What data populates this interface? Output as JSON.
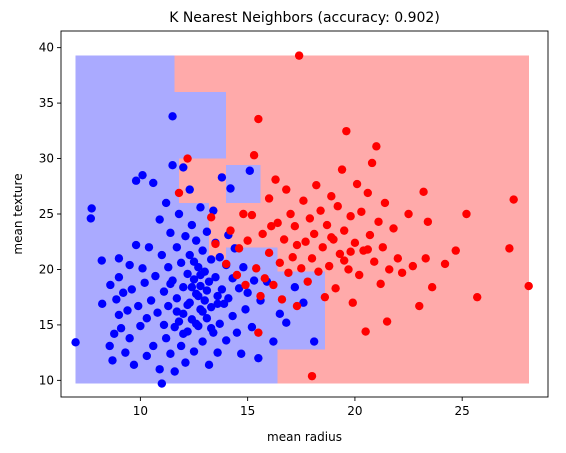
{
  "chart_data": {
    "type": "scatter",
    "title": "K Nearest Neighbors (accuracy: 0.902)",
    "xlabel": "mean radius",
    "ylabel": "mean texture",
    "xlim": [
      6.3,
      29.0
    ],
    "ylim": [
      8.5,
      41.5
    ],
    "xticks": [
      10,
      15,
      20,
      25
    ],
    "yticks": [
      10,
      15,
      20,
      25,
      30,
      35,
      40
    ],
    "grid": false,
    "legend": "none",
    "colors": {
      "class_0_point": "#0000ff",
      "class_1_point": "#ff0000",
      "class_0_region": "#aaaaff",
      "class_1_region": "#ffaaaa"
    },
    "decision_regions": {
      "x_range": [
        6.98,
        28.11
      ],
      "y_range": [
        9.71,
        39.28
      ],
      "class_0_blocks": [
        {
          "x": [
            6.98,
            11.6
          ],
          "y": [
            36.0,
            39.28
          ]
        },
        {
          "x": [
            6.98,
            14.0
          ],
          "y": [
            30.0,
            36.0
          ]
        },
        {
          "x": [
            6.98,
            11.8
          ],
          "y": [
            26.0,
            30.0
          ]
        },
        {
          "x": [
            14.0,
            15.6
          ],
          "y": [
            26.0,
            29.4
          ]
        },
        {
          "x": [
            6.98,
            13.2
          ],
          "y": [
            21.0,
            26.0
          ]
        },
        {
          "x": [
            6.98,
            14.0
          ],
          "y": [
            9.71,
            21.0
          ]
        },
        {
          "x": [
            14.0,
            16.4
          ],
          "y": [
            9.71,
            22.0
          ]
        },
        {
          "x": [
            16.4,
            18.6
          ],
          "y": [
            12.8,
            19.8
          ]
        }
      ]
    },
    "series": [
      {
        "class": 0,
        "color": "#0000ff",
        "points": [
          [
            6.98,
            13.43
          ],
          [
            7.69,
            24.6
          ],
          [
            7.73,
            25.5
          ],
          [
            8.2,
            20.8
          ],
          [
            8.22,
            16.9
          ],
          [
            8.57,
            13.1
          ],
          [
            8.6,
            18.6
          ],
          [
            8.7,
            11.8
          ],
          [
            8.78,
            14.2
          ],
          [
            8.88,
            17.3
          ],
          [
            9.0,
            21.0
          ],
          [
            9.0,
            19.3
          ],
          [
            9.0,
            15.9
          ],
          [
            9.1,
            14.7
          ],
          [
            9.2,
            17.9
          ],
          [
            9.3,
            12.5
          ],
          [
            9.4,
            16.3
          ],
          [
            9.5,
            20.4
          ],
          [
            9.5,
            13.8
          ],
          [
            9.6,
            18.2
          ],
          [
            9.7,
            11.4
          ],
          [
            9.8,
            28.0
          ],
          [
            9.8,
            22.2
          ],
          [
            9.9,
            16.7
          ],
          [
            10.0,
            14.9
          ],
          [
            10.1,
            20.1
          ],
          [
            10.1,
            28.5
          ],
          [
            10.2,
            18.8
          ],
          [
            10.3,
            12.2
          ],
          [
            10.3,
            15.6
          ],
          [
            10.4,
            22.0
          ],
          [
            10.5,
            17.2
          ],
          [
            10.6,
            27.8
          ],
          [
            10.6,
            13.1
          ],
          [
            10.7,
            19.4
          ],
          [
            10.8,
            16.1
          ],
          [
            10.9,
            24.5
          ],
          [
            10.9,
            11.0
          ],
          [
            11.0,
            21.3
          ],
          [
            11.0,
            9.71
          ],
          [
            11.1,
            15.0
          ],
          [
            11.1,
            18.0
          ],
          [
            11.2,
            13.8
          ],
          [
            11.2,
            26.0
          ],
          [
            11.3,
            20.2
          ],
          [
            11.3,
            16.7
          ],
          [
            11.4,
            23.3
          ],
          [
            11.4,
            12.4
          ],
          [
            11.5,
            33.81
          ],
          [
            11.5,
            29.4
          ],
          [
            11.5,
            19.0
          ],
          [
            11.6,
            14.8
          ],
          [
            11.6,
            10.8
          ],
          [
            11.7,
            22.0
          ],
          [
            11.7,
            17.4
          ],
          [
            11.8,
            15.3
          ],
          [
            11.8,
            25.0
          ],
          [
            11.9,
            20.6
          ],
          [
            11.9,
            13.1
          ],
          [
            12.0,
            18.4
          ],
          [
            12.0,
            29.2
          ],
          [
            12.0,
            16.0
          ],
          [
            12.1,
            23.0
          ],
          [
            12.1,
            11.6
          ],
          [
            12.2,
            19.6
          ],
          [
            12.2,
            14.4
          ],
          [
            12.3,
            27.2
          ],
          [
            12.3,
            21.3
          ],
          [
            12.3,
            17.0
          ],
          [
            12.4,
            24.0
          ],
          [
            12.4,
            15.5
          ],
          [
            12.5,
            19.1
          ],
          [
            12.5,
            12.6
          ],
          [
            12.6,
            22.6
          ],
          [
            12.6,
            17.8
          ],
          [
            12.7,
            20.2
          ],
          [
            12.7,
            14.9
          ],
          [
            12.8,
            18.5
          ],
          [
            12.8,
            25.6
          ],
          [
            12.8,
            16.4
          ],
          [
            12.9,
            21.7
          ],
          [
            12.9,
            13.5
          ],
          [
            13.0,
            19.8
          ],
          [
            13.0,
            17.2
          ],
          [
            13.1,
            23.4
          ],
          [
            13.1,
            15.6
          ],
          [
            13.2,
            18.9
          ],
          [
            13.2,
            11.4
          ],
          [
            13.3,
            20.9
          ],
          [
            13.3,
            16.6
          ],
          [
            13.4,
            25.3
          ],
          [
            13.4,
            14.3
          ],
          [
            13.5,
            19.3
          ],
          [
            13.5,
            22.4
          ],
          [
            13.6,
            17.6
          ],
          [
            13.6,
            12.5
          ],
          [
            13.7,
            21.1
          ],
          [
            13.7,
            15.1
          ],
          [
            13.8,
            18.2
          ],
          [
            13.8,
            28.3
          ],
          [
            13.9,
            16.9
          ],
          [
            14.0,
            20.4
          ],
          [
            14.0,
            13.6
          ],
          [
            14.1,
            23.1
          ],
          [
            14.1,
            17.4
          ],
          [
            14.2,
            27.3
          ],
          [
            14.3,
            19.2
          ],
          [
            14.3,
            15.8
          ],
          [
            14.4,
            21.9
          ],
          [
            14.5,
            14.3
          ],
          [
            14.6,
            18.3
          ],
          [
            14.7,
            12.4
          ],
          [
            14.8,
            20.2
          ],
          [
            14.9,
            16.4
          ],
          [
            15.0,
            17.9
          ],
          [
            15.1,
            28.9
          ],
          [
            15.2,
            14.8
          ],
          [
            15.3,
            19.0
          ],
          [
            15.5,
            12.0
          ],
          [
            15.6,
            17.2
          ],
          [
            15.9,
            18.9
          ],
          [
            16.2,
            13.5
          ],
          [
            16.5,
            16.0
          ],
          [
            16.8,
            15.2
          ],
          [
            17.2,
            18.4
          ],
          [
            17.6,
            17.0
          ],
          [
            18.1,
            13.5
          ],
          [
            12.7,
            17.6
          ],
          [
            12.9,
            16.2
          ],
          [
            13.1,
            18.1
          ],
          [
            12.4,
            18.4
          ],
          [
            12.2,
            16.8
          ],
          [
            12.6,
            15.1
          ],
          [
            13.3,
            14.7
          ],
          [
            12.0,
            14.2
          ],
          [
            11.7,
            16.2
          ],
          [
            13.6,
            16.9
          ],
          [
            12.8,
            19.5
          ],
          [
            11.4,
            18.7
          ],
          [
            12.5,
            20.7
          ]
        ]
      },
      {
        "class": 1,
        "color": "#ff0000",
        "points": [
          [
            11.8,
            26.9
          ],
          [
            12.2,
            30.0
          ],
          [
            13.3,
            24.7
          ],
          [
            13.5,
            22.3
          ],
          [
            14.0,
            20.5
          ],
          [
            14.2,
            23.5
          ],
          [
            14.5,
            19.5
          ],
          [
            14.6,
            21.9
          ],
          [
            14.8,
            25.0
          ],
          [
            14.9,
            18.6
          ],
          [
            15.0,
            22.6
          ],
          [
            15.2,
            24.9
          ],
          [
            15.3,
            30.3
          ],
          [
            15.4,
            20.1
          ],
          [
            15.5,
            33.56
          ],
          [
            15.5,
            14.3
          ],
          [
            15.6,
            17.6
          ],
          [
            15.7,
            23.2
          ],
          [
            15.8,
            19.2
          ],
          [
            16.0,
            26.4
          ],
          [
            16.0,
            21.5
          ],
          [
            16.2,
            18.6
          ],
          [
            16.3,
            28.1
          ],
          [
            16.4,
            24.2
          ],
          [
            16.5,
            20.6
          ],
          [
            16.6,
            17.3
          ],
          [
            16.7,
            22.7
          ],
          [
            16.8,
            27.2
          ],
          [
            16.9,
            19.7
          ],
          [
            17.0,
            25.0
          ],
          [
            17.1,
            21.1
          ],
          [
            17.2,
            23.9
          ],
          [
            17.3,
            16.7
          ],
          [
            17.4,
            39.28
          ],
          [
            17.5,
            20.1
          ],
          [
            17.6,
            26.2
          ],
          [
            17.7,
            22.5
          ],
          [
            17.8,
            18.9
          ],
          [
            17.9,
            24.6
          ],
          [
            18.0,
            21.0
          ],
          [
            18.0,
            10.38
          ],
          [
            18.1,
            23.2
          ],
          [
            18.2,
            27.6
          ],
          [
            18.3,
            19.8
          ],
          [
            18.4,
            25.3
          ],
          [
            18.5,
            22.0
          ],
          [
            18.6,
            17.5
          ],
          [
            18.7,
            24.0
          ],
          [
            18.8,
            20.3
          ],
          [
            18.9,
            26.6
          ],
          [
            19.0,
            22.7
          ],
          [
            19.1,
            18.3
          ],
          [
            19.2,
            25.7
          ],
          [
            19.3,
            21.4
          ],
          [
            19.4,
            29.0
          ],
          [
            19.5,
            23.5
          ],
          [
            19.6,
            32.47
          ],
          [
            19.7,
            20.0
          ],
          [
            19.8,
            24.8
          ],
          [
            19.9,
            17.0
          ],
          [
            20.0,
            22.4
          ],
          [
            20.1,
            27.7
          ],
          [
            20.2,
            19.5
          ],
          [
            20.3,
            25.2
          ],
          [
            20.4,
            21.7
          ],
          [
            20.5,
            14.4
          ],
          [
            20.6,
            26.9
          ],
          [
            20.7,
            23.1
          ],
          [
            20.8,
            29.6
          ],
          [
            20.9,
            20.7
          ],
          [
            21.0,
            31.1
          ],
          [
            21.1,
            24.3
          ],
          [
            21.2,
            18.7
          ],
          [
            21.3,
            22.0
          ],
          [
            21.4,
            26.0
          ],
          [
            21.5,
            15.3
          ],
          [
            21.6,
            20.0
          ],
          [
            21.8,
            23.7
          ],
          [
            22.0,
            21.0
          ],
          [
            22.2,
            19.7
          ],
          [
            22.5,
            25.0
          ],
          [
            22.7,
            20.3
          ],
          [
            23.0,
            16.7
          ],
          [
            23.2,
            27.0
          ],
          [
            23.3,
            21.0
          ],
          [
            23.4,
            24.3
          ],
          [
            23.6,
            18.4
          ],
          [
            24.2,
            20.5
          ],
          [
            24.7,
            21.7
          ],
          [
            25.2,
            25.0
          ],
          [
            25.7,
            17.5
          ],
          [
            27.2,
            21.9
          ],
          [
            27.4,
            26.3
          ],
          [
            28.1,
            18.5
          ],
          [
            19.8,
            21.6
          ],
          [
            18.9,
            22.9
          ],
          [
            19.5,
            20.8
          ],
          [
            20.6,
            21.8
          ],
          [
            17.3,
            22.2
          ],
          [
            16.1,
            23.9
          ]
        ]
      }
    ]
  }
}
